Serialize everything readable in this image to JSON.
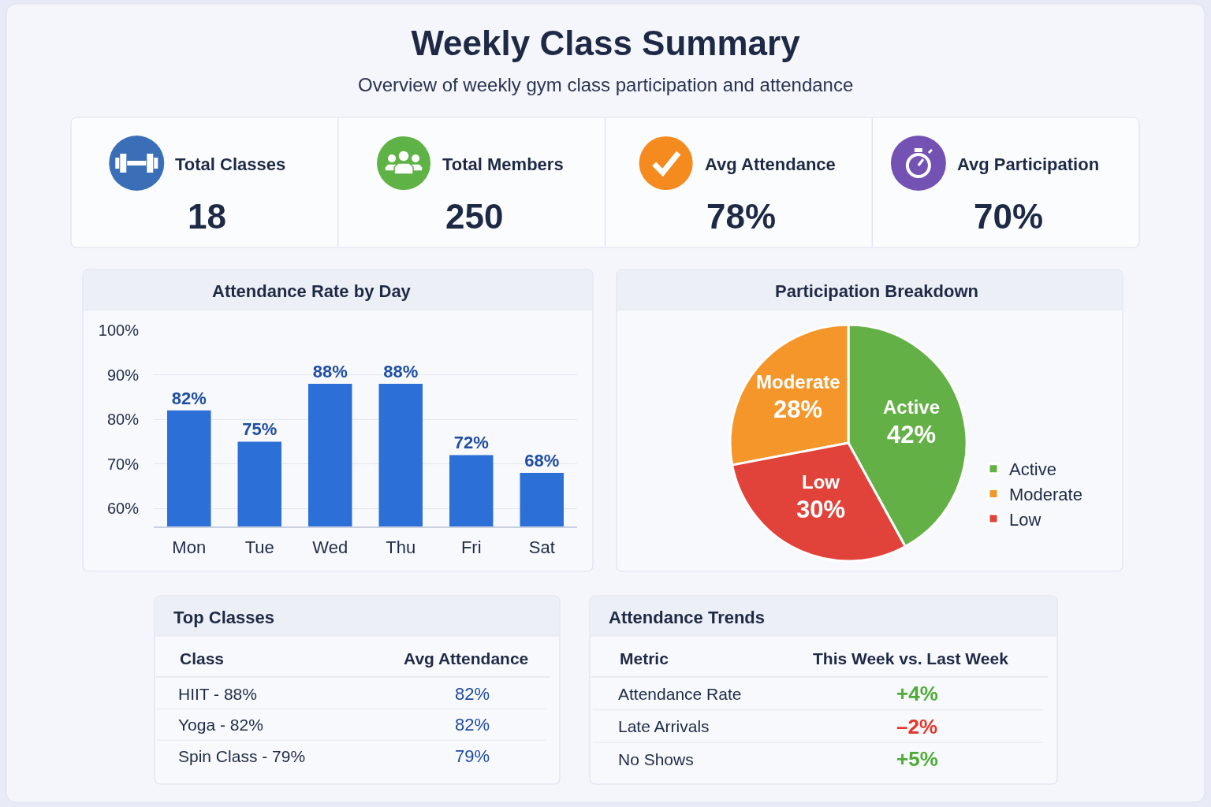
{
  "chart_data": [
    {
      "type": "other",
      "title": "Weekly Class Summary",
      "subtitle": "Overview of weekly gym class participation and attendance",
      "categories": [
        "Total Classes",
        "Total Members",
        "Avg Attendance",
        "Avg Participation"
      ],
      "values": [
        18,
        250,
        78,
        70
      ],
      "value_labels": [
        "18",
        "250",
        "78%",
        "70%"
      ]
    },
    {
      "type": "bar",
      "title": "Attendance Rate by Day",
      "categories": [
        "Mon",
        "Tue",
        "Wed",
        "Thu",
        "Fri",
        "Sat"
      ],
      "values": [
        82,
        75,
        88,
        88,
        72,
        68
      ],
      "value_labels": [
        "82%",
        "75%",
        "88%",
        "88%",
        "72%",
        "68%"
      ],
      "color": "#2c6fd6",
      "ylim": [
        56,
        100
      ],
      "yticks": [
        {
          "value": 60,
          "label": "60%"
        },
        {
          "value": 70,
          "label": "70%"
        },
        {
          "value": 80,
          "label": "80%"
        },
        {
          "value": 90,
          "label": "90%"
        },
        {
          "value": 100,
          "label": "100%"
        }
      ],
      "grid": "y"
    },
    {
      "type": "pie",
      "title": "Participation Breakdown",
      "categories": [
        "Active",
        "Moderate",
        "Low"
      ],
      "values": [
        42,
        28,
        30
      ],
      "value_labels": [
        "42%",
        "28%",
        "30%"
      ],
      "colors": [
        "#63b146",
        "#f5962a",
        "#e1433a"
      ],
      "legend": "right"
    },
    {
      "type": "other",
      "title": "Top Classes",
      "xlabel": "Class",
      "ylabel": "Avg Attendance",
      "categories": [
        "HIIT - 88%",
        "Yoga - 82%",
        "Spin Class - 79%"
      ],
      "value_labels": [
        "82%",
        "82%",
        "79%"
      ]
    },
    {
      "type": "other",
      "title": "Attendance Trends",
      "xlabel": "Metric",
      "ylabel": "This Week vs. Last Week",
      "categories": [
        "Attendance Rate",
        "Late Arrivals",
        "No Shows"
      ],
      "value_labels": [
        "+4%",
        "–2%",
        "+5%"
      ]
    }
  ]
}
